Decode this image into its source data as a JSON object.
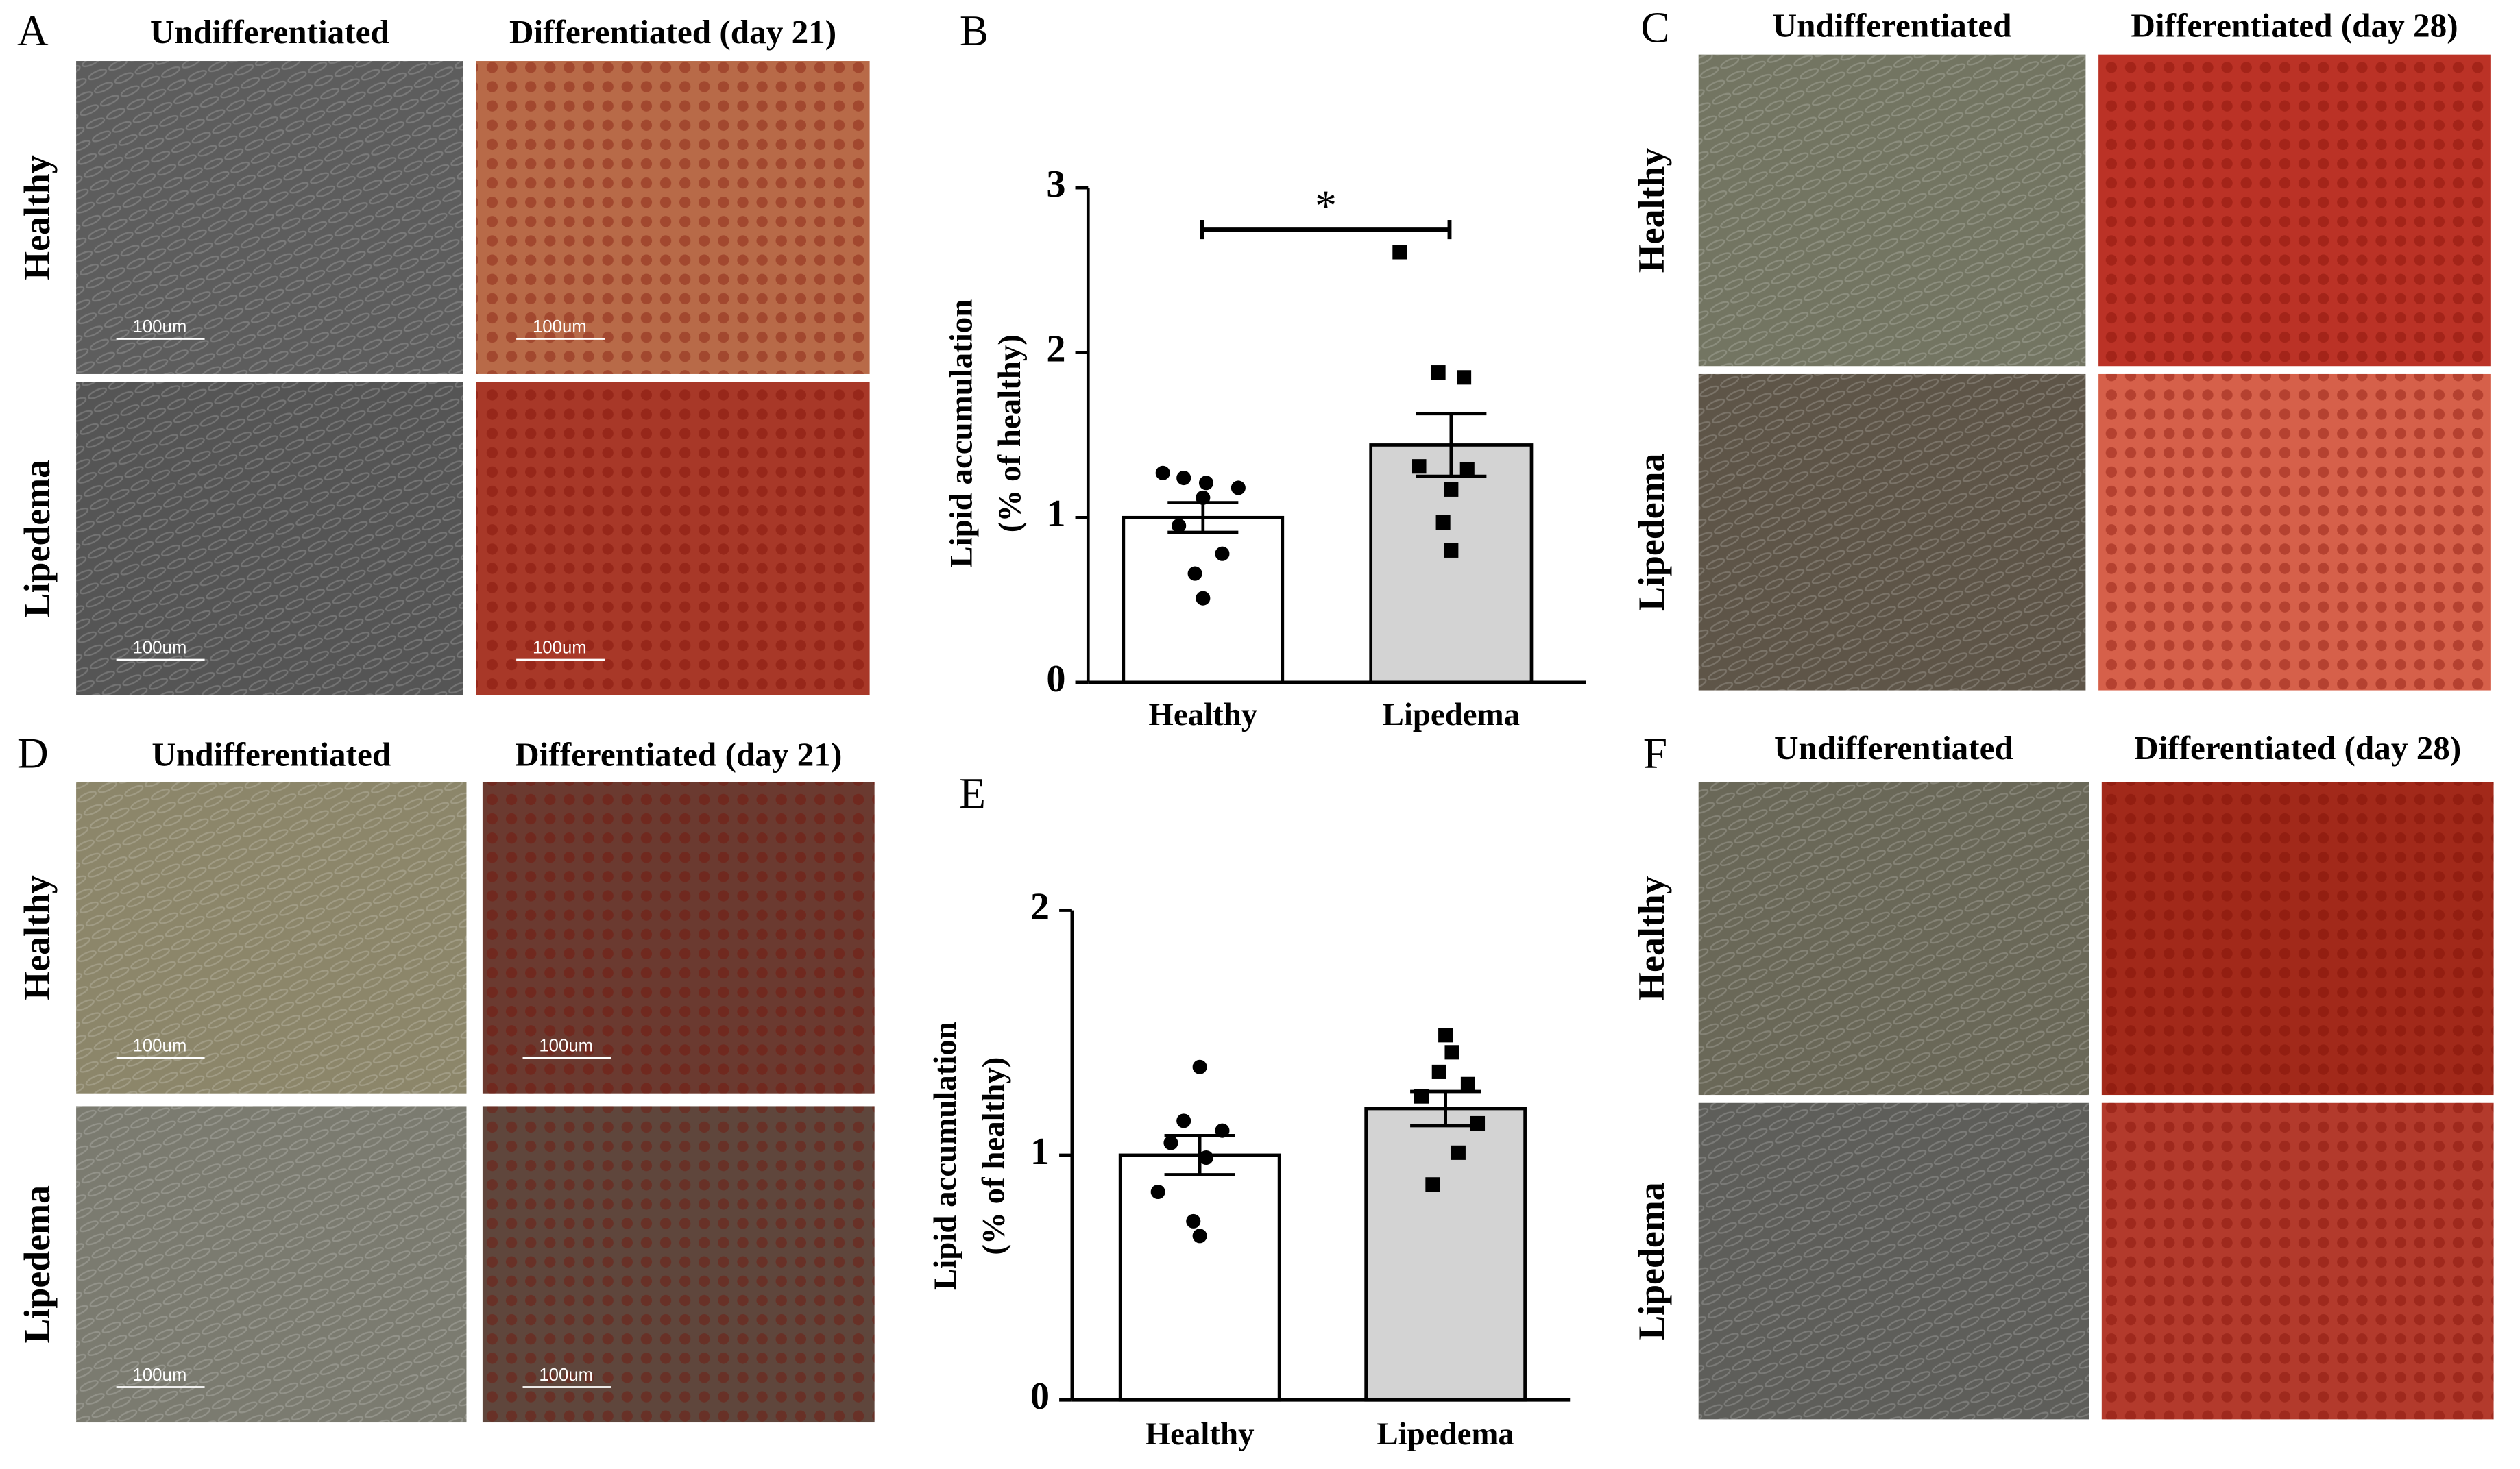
{
  "chart_data": [
    {
      "type": "bar",
      "panel": "B",
      "ylabel": [
        "Lipid accumulation",
        "(% of healthy)"
      ],
      "categories": [
        "Healthy",
        "Lipedema"
      ],
      "values": [
        1.0,
        1.44
      ],
      "errors": [
        0.09,
        0.19
      ],
      "points": [
        [
          1.27,
          1.24,
          1.21,
          1.18,
          1.12,
          0.95,
          0.78,
          0.66,
          0.51
        ],
        [
          2.61,
          1.88,
          1.85,
          1.31,
          1.29,
          1.17,
          0.97,
          0.8
        ]
      ],
      "colors": [
        "#ffffff",
        "#d3d3d3"
      ],
      "annotation": "*",
      "ylim": [
        0,
        3
      ],
      "yticks": [
        0,
        1,
        2,
        3
      ]
    },
    {
      "type": "bar",
      "panel": "E",
      "ylabel": [
        "Lipid accumulation",
        "(% of healthy)"
      ],
      "categories": [
        "Healthy",
        "Lipedema"
      ],
      "values": [
        1.0,
        1.19
      ],
      "errors": [
        0.08,
        0.07
      ],
      "points": [
        [
          1.36,
          1.14,
          1.1,
          1.05,
          0.99,
          0.85,
          0.73,
          0.67
        ],
        [
          1.49,
          1.42,
          1.34,
          1.29,
          1.24,
          1.13,
          1.01,
          0.88
        ]
      ],
      "colors": [
        "#ffffff",
        "#d3d3d3"
      ],
      "ylim": [
        0,
        2
      ],
      "yticks": [
        0,
        1,
        2
      ]
    }
  ],
  "panels": [
    {
      "label": "A",
      "col_titles": [
        "Undifferentiated",
        "Differentiated (day 21)"
      ],
      "row_titles": [
        "Healthy",
        "Lipedema"
      ],
      "scale_bars": [
        "100um",
        "100um",
        "100um",
        "100um"
      ]
    },
    {
      "label": "C",
      "col_titles": [
        "Undifferentiated",
        "Differentiated (day 28)"
      ],
      "row_titles": [
        "Healthy",
        "Lipedema"
      ]
    },
    {
      "label": "D",
      "col_titles": [
        "Undifferentiated",
        "Differentiated (day 21)"
      ],
      "row_titles": [
        "Healthy",
        "Lipedema"
      ],
      "scale_bars": [
        "100um",
        "100um",
        "100um",
        "100um"
      ]
    },
    {
      "label": "F",
      "col_titles": [
        "Undifferentiated",
        "Differentiated (day 28)"
      ],
      "row_titles": [
        "Healthy",
        "Lipedema"
      ]
    }
  ]
}
